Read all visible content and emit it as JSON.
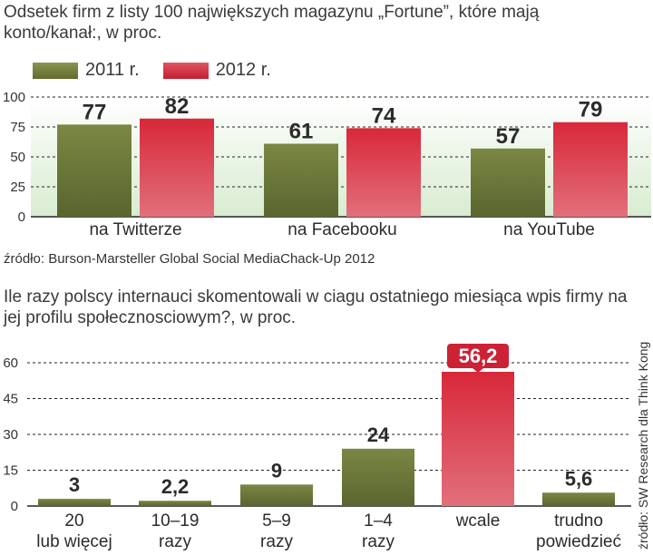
{
  "source_top": "źródło: Burson-Marsteller Global Social MediaChack-Up 2012",
  "source_side": "źródło: SW Research dla Think Kong",
  "colors": {
    "olive": "#6e7a3a",
    "red": "#d4303f",
    "grid": "#222222"
  },
  "chart_data": [
    {
      "type": "bar",
      "title": "Odsetek firm z listy 100 największych magazynu „Fortune”, które mają konto/kanał:, w proc.",
      "categories": [
        "na Twitterze",
        "na Facebooku",
        "na YouTube"
      ],
      "series": [
        {
          "name": "2011 r.",
          "values": [
            77,
            61,
            57
          ]
        },
        {
          "name": "2012 r.",
          "values": [
            82,
            74,
            79
          ]
        }
      ],
      "ylim": [
        0,
        100
      ],
      "yticks": [
        "0",
        "25",
        "50",
        "75",
        "100"
      ],
      "legend": "top-left",
      "grid": true
    },
    {
      "type": "bar",
      "title": "Ile razy polscy internauci skomentowali w ciagu ostatniego miesiąca wpis firmy na jej profilu społecznosciowym?, w proc.",
      "categories": [
        [
          "20",
          "lub więcej"
        ],
        [
          "10–19",
          "razy"
        ],
        [
          "5–9",
          "razy"
        ],
        [
          "1–4",
          "razy"
        ],
        [
          "wcale"
        ],
        [
          "trudno",
          "powiedzieć"
        ]
      ],
      "values": [
        3,
        2.2,
        9,
        24,
        56.2,
        5.6
      ],
      "value_labels": [
        "3",
        "2,2",
        "9",
        "24",
        "56,2",
        "5,6"
      ],
      "highlight_index": 4,
      "ylim": [
        0,
        60
      ],
      "yticks": [
        "0",
        "15",
        "30",
        "45",
        "60"
      ],
      "grid": true
    }
  ]
}
